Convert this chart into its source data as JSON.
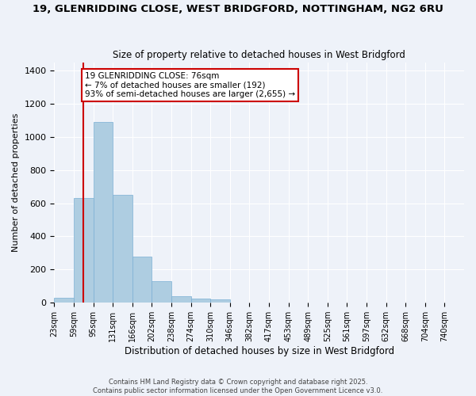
{
  "title_line1": "19, GLENRIDDING CLOSE, WEST BRIDGFORD, NOTTINGHAM, NG2 6RU",
  "title_line2": "Size of property relative to detached houses in West Bridgford",
  "xlabel": "Distribution of detached houses by size in West Bridgford",
  "ylabel": "Number of detached properties",
  "bin_labels": [
    "23sqm",
    "59sqm",
    "95sqm",
    "131sqm",
    "166sqm",
    "202sqm",
    "238sqm",
    "274sqm",
    "310sqm",
    "346sqm",
    "382sqm",
    "417sqm",
    "453sqm",
    "489sqm",
    "525sqm",
    "561sqm",
    "597sqm",
    "632sqm",
    "668sqm",
    "704sqm",
    "740sqm"
  ],
  "bar_heights": [
    30,
    630,
    1090,
    650,
    280,
    130,
    40,
    25,
    20,
    0,
    0,
    0,
    0,
    0,
    0,
    0,
    0,
    0,
    0,
    0,
    0
  ],
  "bar_color": "#aecde1",
  "bar_edge_color": "#7bafd4",
  "property_size": 76,
  "annotation_text": "19 GLENRIDDING CLOSE: 76sqm\n← 7% of detached houses are smaller (192)\n93% of semi-detached houses are larger (2,655) →",
  "annotation_box_color": "#ffffff",
  "annotation_box_edge": "#cc0000",
  "vline_color": "#cc0000",
  "ylim": [
    0,
    1450
  ],
  "yticks": [
    0,
    200,
    400,
    600,
    800,
    1000,
    1200,
    1400
  ],
  "background_color": "#eef2f9",
  "grid_color": "#ffffff",
  "footer_line1": "Contains HM Land Registry data © Crown copyright and database right 2025.",
  "footer_line2": "Contains public sector information licensed under the Open Government Licence v3.0."
}
